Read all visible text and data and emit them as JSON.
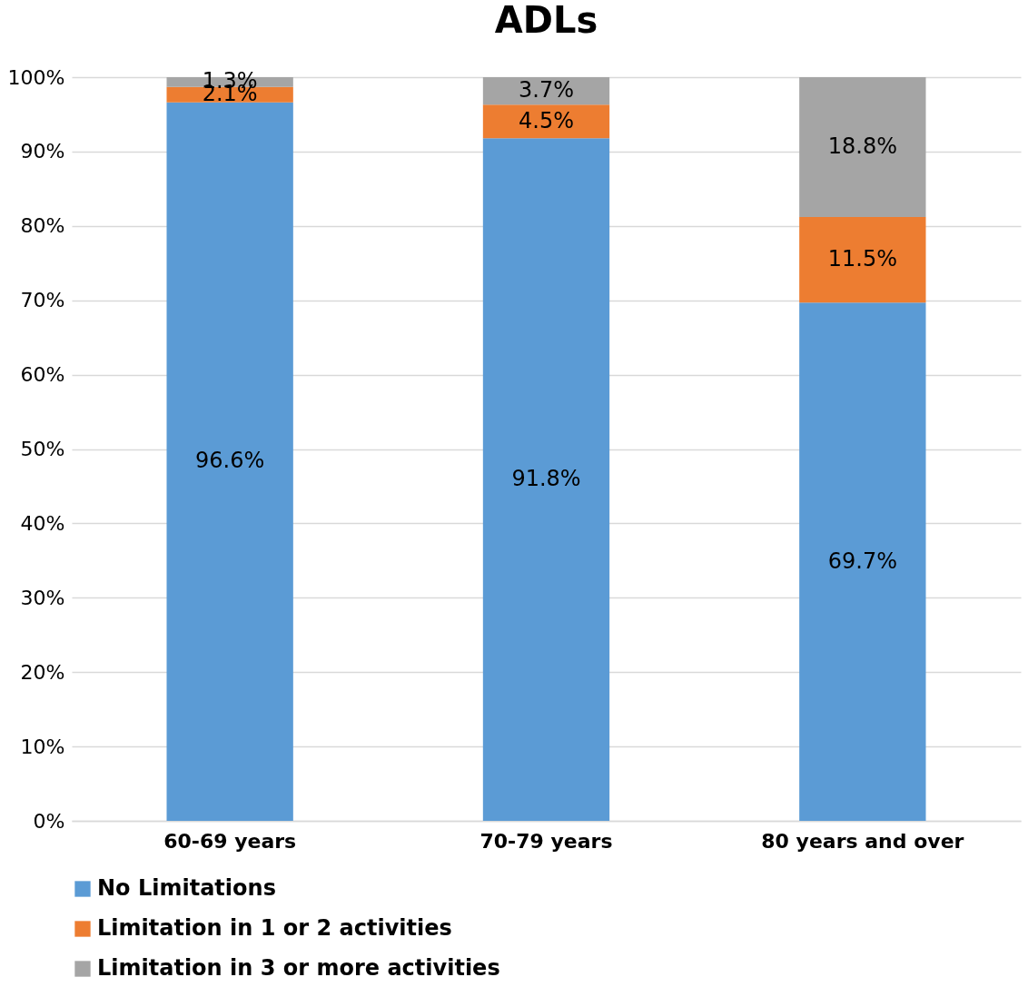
{
  "chart_data": {
    "type": "bar",
    "title": "ADLs",
    "stacked": true,
    "categories": [
      "60-69 years",
      "70-79 years",
      "80 years and over"
    ],
    "series": [
      {
        "name": "No Limitations",
        "color": "#5b9bd5",
        "values": [
          96.6,
          91.8,
          69.7
        ],
        "value_labels": [
          "96.6%",
          "91.8%",
          "69.7%"
        ]
      },
      {
        "name": "Limitation in 1 or 2 activities",
        "color": "#ed7d31",
        "values": [
          2.1,
          4.5,
          11.5
        ],
        "value_labels": [
          "2.1%",
          "4.5%",
          "11.5%"
        ]
      },
      {
        "name": "Limitation in 3 or more activities",
        "color": "#a5a5a5",
        "values": [
          1.3,
          3.7,
          18.8
        ],
        "value_labels": [
          "1.3%",
          "3.7%",
          "18.8%"
        ]
      }
    ],
    "ylim": [
      0,
      100
    ],
    "yticks": [
      {
        "value": 0,
        "label": "0%"
      },
      {
        "value": 10,
        "label": "10%"
      },
      {
        "value": 20,
        "label": "20%"
      },
      {
        "value": 30,
        "label": "30%"
      },
      {
        "value": 40,
        "label": "40%"
      },
      {
        "value": 50,
        "label": "50%"
      },
      {
        "value": 60,
        "label": "60%"
      },
      {
        "value": 70,
        "label": "70%"
      },
      {
        "value": 80,
        "label": "80%"
      },
      {
        "value": 90,
        "label": "90%"
      },
      {
        "value": 100,
        "label": "100%"
      }
    ],
    "grid": "y",
    "legend": "bottom"
  }
}
